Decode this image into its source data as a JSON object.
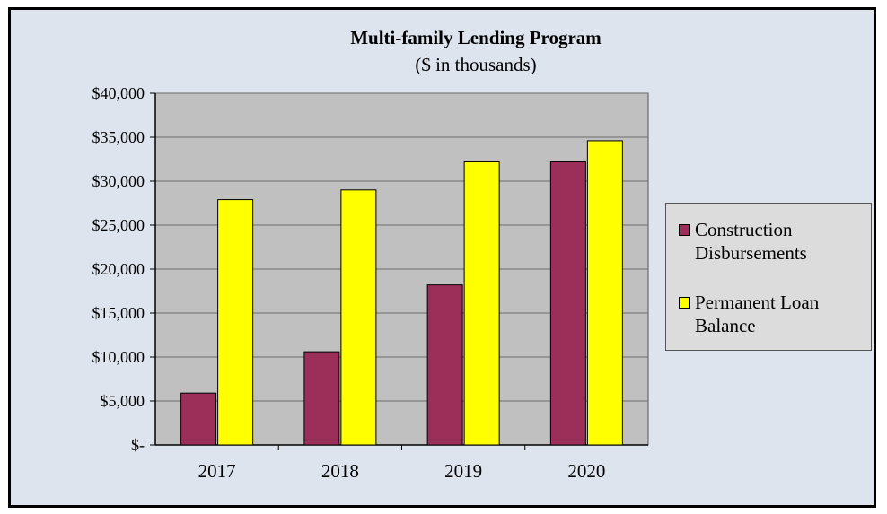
{
  "chart_data": {
    "type": "bar",
    "title": "Multi-family Lending Program",
    "subtitle": "($ in thousands)",
    "categories": [
      "2017",
      "2018",
      "2019",
      "2020"
    ],
    "series": [
      {
        "name": "Construction Disbursements",
        "legend_lines": [
          "Construction",
          "Disbursements"
        ],
        "color": "#9c2f5a",
        "values": [
          5900,
          10600,
          18200,
          32200
        ]
      },
      {
        "name": "Permanent Loan Balance",
        "legend_lines": [
          "Permanent Loan",
          "Balance"
        ],
        "color": "#ffff00",
        "values": [
          27900,
          29000,
          32200,
          34600
        ]
      }
    ],
    "ylim": [
      0,
      40000
    ],
    "yticks": [
      0,
      5000,
      10000,
      15000,
      20000,
      25000,
      30000,
      35000,
      40000
    ],
    "ytick_labels": [
      "$-",
      "$5,000",
      "$10,000",
      "$15,000",
      "$20,000",
      "$25,000",
      "$30,000",
      "$35,000",
      "$40,000"
    ],
    "grid": true,
    "legend_position": "right",
    "plot_background": "#c0c0c0",
    "chart_background": "#dde4ee"
  }
}
